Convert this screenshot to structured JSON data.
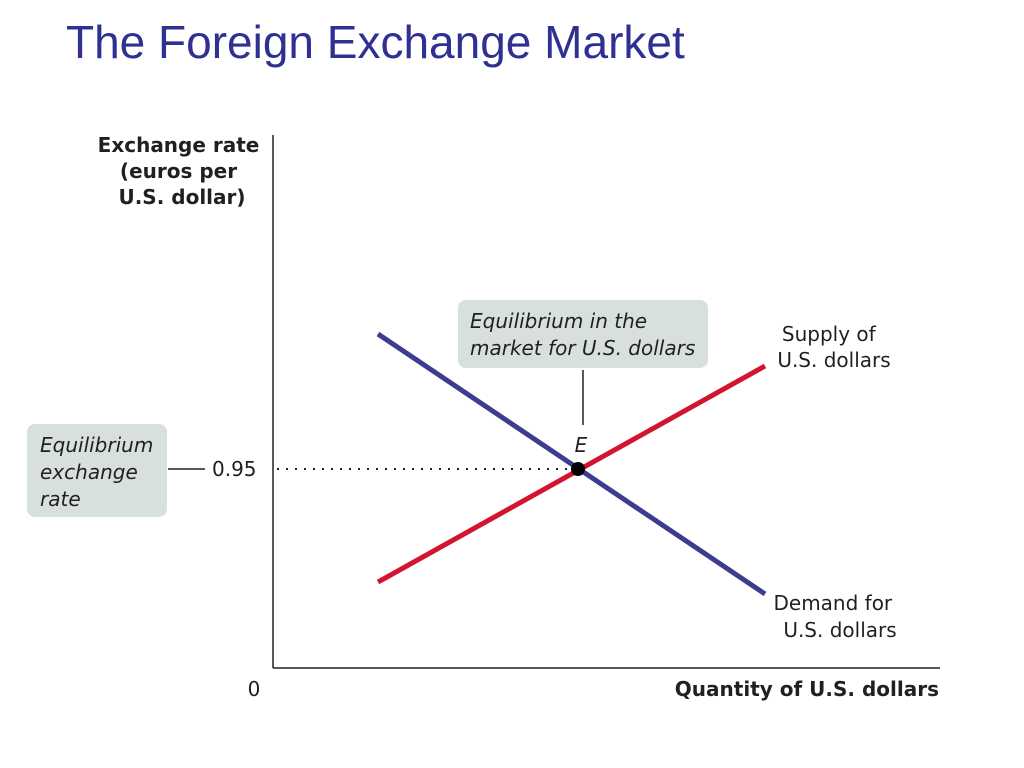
{
  "header": {
    "title": "The Foreign Exchange Market"
  },
  "diagram": {
    "y_axis_label": [
      "Exchange rate",
      "(euros per",
      "U.S. dollar)"
    ],
    "x_axis_label": "Quantity of U.S. dollars",
    "origin_label": "0",
    "rate_tick": "0.95",
    "rate_callout": [
      "Equilibrium",
      "exchange",
      "rate"
    ],
    "equilibrium_callout": [
      "Equilibrium in the",
      "market for U.S. dollars"
    ],
    "point_label": "E",
    "supply_label": [
      "Supply of",
      "U.S. dollars"
    ],
    "demand_label": [
      "Demand for",
      "U.S. dollars"
    ]
  }
}
